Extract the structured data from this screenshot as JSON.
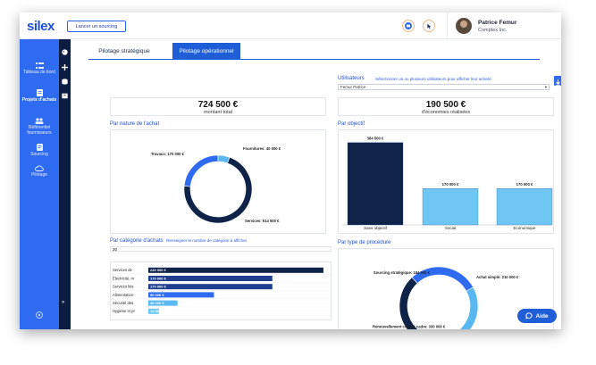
{
  "header": {
    "logo": "silex",
    "sourcing_button": "Lancer un sourcing",
    "user_name": "Patrice Femur",
    "company": "Comptex Inc."
  },
  "sidebar": {
    "items": [
      {
        "label": "Tableau de bord",
        "icon": "dashboard-icon"
      },
      {
        "label": "Projets d'achats",
        "icon": "projects-icon"
      },
      {
        "label": "Référentiel fournisseurs",
        "icon": "suppliers-icon"
      },
      {
        "label": "Sourcing",
        "icon": "sourcing-icon"
      },
      {
        "label": "Pilotage",
        "icon": "cloud-icon"
      }
    ],
    "expand_glyph": "»"
  },
  "tabs": [
    {
      "label": "Pilotage stratégique",
      "active": false
    },
    {
      "label": "Pilotage opérationnel",
      "active": true
    }
  ],
  "users_filter": {
    "label": "Utilisateurs",
    "hint": "Sélectionner un ou plusieurs utilisateurs pour afficher leur activité",
    "value": "Femur Patrice"
  },
  "kpis": [
    {
      "value": "724 500 €",
      "label": "montant total"
    },
    {
      "value": "190 500 €",
      "label": "d'économies réalisées"
    }
  ],
  "panels": {
    "nature": "Par nature de l'achat",
    "objective": "Par objectif",
    "category": "Par catégorie d'achats",
    "category_hint": "Renseigner le nombre de catégorie à afficher",
    "category_count": "20",
    "procedure": "Par type de procédure"
  },
  "help_button": "Aide",
  "chart_data": [
    {
      "type": "pie",
      "title": "Par nature de l'achat",
      "slices": [
        {
          "label": "Services: 514 500 €",
          "value": 514500,
          "color": "#0f2348"
        },
        {
          "label": "Travaux: 170 000 €",
          "value": 170000,
          "color": "#2f6bf0"
        },
        {
          "label": "Fournitures: 40 000 €",
          "value": 40000,
          "color": "#5ab8f0"
        }
      ]
    },
    {
      "type": "bar",
      "title": "Par objectif",
      "categories": [
        "Sans objectif",
        "Social",
        "Economique"
      ],
      "values": [
        384500,
        170000,
        170000
      ],
      "value_labels": [
        "384 500 €",
        "170 000 €",
        "170 000 €"
      ],
      "colors": [
        "#0f2348",
        "#6ec6f2",
        "#6ec6f2"
      ],
      "ylim": [
        0,
        400000
      ]
    },
    {
      "type": "bar",
      "orientation": "horizontal",
      "title": "Par catégorie d'achats",
      "categories": [
        "Services de",
        "Electricité, m",
        "Services liés",
        "Alimentation",
        "Sécurité des",
        "Hygiène et pr"
      ],
      "values": [
        240000,
        170000,
        170000,
        90000,
        40000,
        14500
      ],
      "value_labels": [
        "240 000 €",
        "170 000 €",
        "170 000 €",
        "90 000 €",
        "40 000 €",
        "14 500 €"
      ],
      "colors": [
        "#0f2348",
        "#1e3f8f",
        "#1e3f8f",
        "#2f6bf0",
        "#5ab8f0",
        "#6ec6f2"
      ],
      "xlim": [
        0,
        245000
      ]
    },
    {
      "type": "pie",
      "title": "Par type de procédure",
      "slices": [
        {
          "label": "Renouvellement contrat cadre: 330 000 €",
          "value": 330000,
          "color": "#0f2348"
        },
        {
          "label": "Achat simple: 210 000 €",
          "value": 210000,
          "color": "#2f6bf0"
        },
        {
          "label": "Sourcing stratégique: 184 500 €",
          "value": 184500,
          "color": "#5ab8f0"
        }
      ]
    }
  ]
}
